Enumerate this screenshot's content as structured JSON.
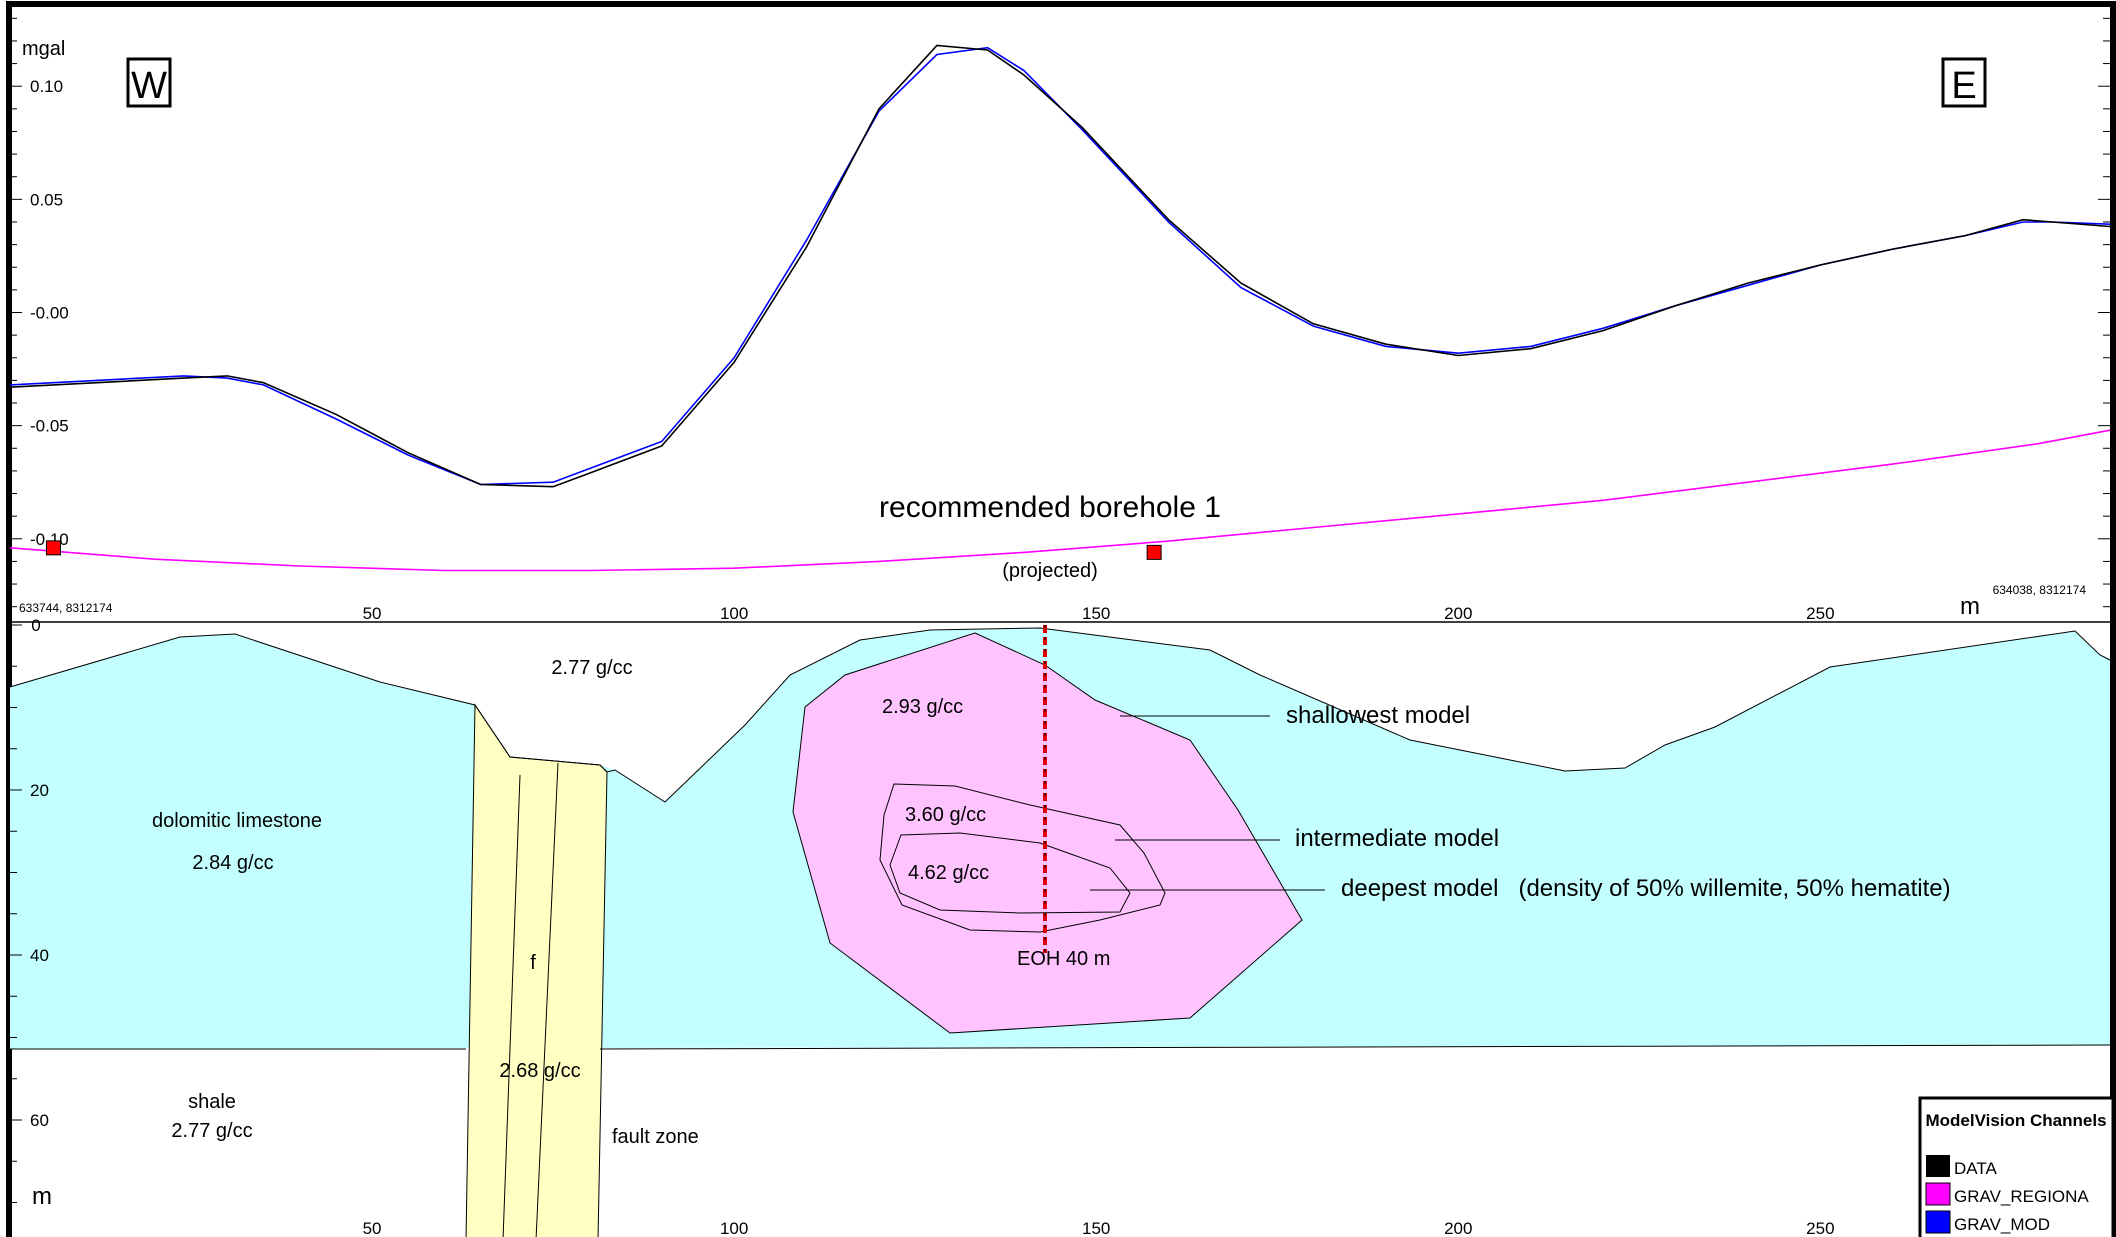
{
  "chart_data": [
    {
      "type": "line",
      "ylabel": "mgal",
      "y_ticks": [
        "0.10",
        "0.05",
        "-0.00",
        "-0.05",
        "-0.10"
      ],
      "ylim": [
        -0.135,
        0.135
      ],
      "x_ticks": [
        "50",
        "100",
        "150",
        "200",
        "250"
      ],
      "xlabel": "m",
      "xlim": [
        0,
        290
      ],
      "direction_left": "W",
      "direction_right": "E",
      "start_coord": "633744, 8312174",
      "end_coord": "634038, 8312174",
      "annotation": "recommended borehole 1",
      "annotation_sub": "(projected)",
      "series": [
        {
          "name": "DATA",
          "color": "#000000",
          "x": [
            0,
            12,
            24,
            30,
            35,
            45,
            55,
            65,
            75,
            80,
            90,
            100,
            110,
            120,
            128,
            135,
            140,
            148,
            160,
            170,
            180,
            190,
            200,
            210,
            220,
            230,
            240,
            250,
            260,
            270,
            278,
            282,
            290
          ],
          "y": [
            -0.033,
            -0.031,
            -0.029,
            -0.028,
            -0.031,
            -0.045,
            -0.062,
            -0.076,
            -0.077,
            -0.071,
            -0.059,
            -0.022,
            0.029,
            0.09,
            0.118,
            0.116,
            0.105,
            0.082,
            0.041,
            0.013,
            -0.005,
            -0.014,
            -0.019,
            -0.016,
            -0.008,
            0.003,
            0.013,
            0.021,
            0.028,
            0.034,
            0.041,
            0.04,
            0.038
          ]
        },
        {
          "name": "GRAV_MODEL",
          "color": "#0000ff",
          "x": [
            0,
            12,
            24,
            30,
            35,
            45,
            55,
            65,
            75,
            80,
            90,
            100,
            110,
            120,
            128,
            135,
            140,
            148,
            160,
            170,
            180,
            190,
            200,
            210,
            220,
            230,
            240,
            250,
            260,
            270,
            278,
            282,
            290
          ],
          "y": [
            -0.032,
            -0.03,
            -0.028,
            -0.029,
            -0.032,
            -0.047,
            -0.063,
            -0.076,
            -0.075,
            -0.069,
            -0.057,
            -0.02,
            0.032,
            0.089,
            0.114,
            0.117,
            0.107,
            0.081,
            0.04,
            0.011,
            -0.006,
            -0.015,
            -0.018,
            -0.015,
            -0.007,
            0.003,
            0.012,
            0.021,
            0.028,
            0.034,
            0.04,
            0.04,
            0.039
          ]
        },
        {
          "name": "GRAV_REGIONAL",
          "color": "#ff00ff",
          "x": [
            0,
            20,
            40,
            60,
            80,
            100,
            120,
            140,
            160,
            180,
            200,
            220,
            240,
            260,
            280,
            290
          ],
          "y": [
            -0.104,
            -0.109,
            -0.112,
            -0.114,
            -0.114,
            -0.113,
            -0.11,
            -0.106,
            -0.101,
            -0.095,
            -0.089,
            -0.083,
            -0.075,
            -0.067,
            -0.058,
            -0.052
          ]
        }
      ],
      "stations": [
        {
          "x": 6,
          "y": -0.104
        },
        {
          "x": 158,
          "y": -0.106
        }
      ]
    },
    {
      "type": "cross-section",
      "ylabel": "m",
      "y_ticks": [
        "0",
        "20",
        "40",
        "60"
      ],
      "ylim": [
        0,
        74
      ],
      "x_ticks": [
        "50",
        "100",
        "150",
        "200",
        "250"
      ],
      "xlim": [
        0,
        290
      ],
      "bodies": [
        {
          "label": "dolomitic limestone",
          "density": "2.84 g/cc",
          "color": "#c4ffff"
        },
        {
          "label": "2.77 g/cc",
          "color": "#ffffff"
        },
        {
          "label": "shale",
          "density": "2.77 g/cc",
          "color": "#ffffff"
        },
        {
          "label": "fault zone",
          "density": "2.68 g/cc",
          "marker": "f",
          "color": "#ffffc4"
        },
        {
          "label": "shallowest model",
          "density": "2.93 g/cc",
          "color": "#ffc4ff"
        },
        {
          "label": "intermediate model",
          "density": "3.60 g/cc"
        },
        {
          "label": "deepest model   (density of 50% willemite, 50% hematite)",
          "density": "4.62 g/cc"
        }
      ],
      "borehole": {
        "x": 145,
        "depth": 40,
        "label": "EOH 40 m"
      }
    }
  ],
  "legend": {
    "title": "ModelVision Channels",
    "items": [
      {
        "label": "DATA",
        "color": "#000000"
      },
      {
        "label": "GRAV_REGIONA",
        "color": "#ff00ff"
      },
      {
        "label": "GRAV_MOD",
        "color": "#0000ff"
      }
    ]
  }
}
